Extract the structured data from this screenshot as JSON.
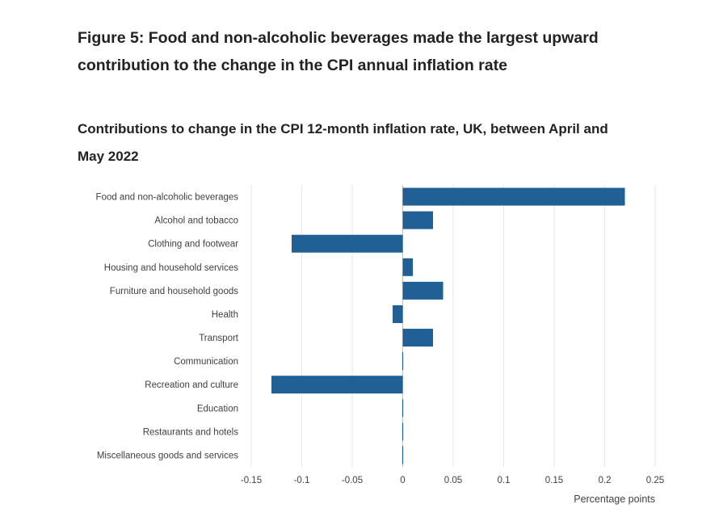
{
  "title": "Figure 5: Food and non-alcoholic beverages made the largest upward contribution to the change in the CPI annual inflation rate",
  "subtitle": "Contributions to change in the CPI 12-month inflation rate, UK, between April and May 2022",
  "colors": {
    "bar": "#206095",
    "grid": "#e6e6e6",
    "zero_line": "#bebebe"
  },
  "chart_data": {
    "type": "bar",
    "orientation": "horizontal",
    "categories": [
      "Food and non-alcoholic beverages",
      "Alcohol and tobacco",
      "Clothing and footwear",
      "Housing and household services",
      "Furniture and household goods",
      "Health",
      "Transport",
      "Communication",
      "Recreation and culture",
      "Education",
      "Restaurants and hotels",
      "Miscellaneous goods and services"
    ],
    "values": [
      0.22,
      0.03,
      -0.11,
      0.01,
      0.04,
      -0.01,
      0.03,
      0.0,
      -0.13,
      0.0,
      0.0,
      0.0
    ],
    "xlim": [
      -0.15,
      0.25
    ],
    "xticks": [
      -0.15,
      -0.1,
      -0.05,
      0,
      0.05,
      0.1,
      0.15,
      0.2,
      0.25
    ],
    "xtick_labels": [
      "-0.15",
      "-0.1",
      "-0.05",
      "0",
      "0.05",
      "0.1",
      "0.15",
      "0.2",
      "0.25"
    ],
    "xlabel": "Percentage points",
    "ylabel": "",
    "grid": true,
    "legend": "none"
  }
}
